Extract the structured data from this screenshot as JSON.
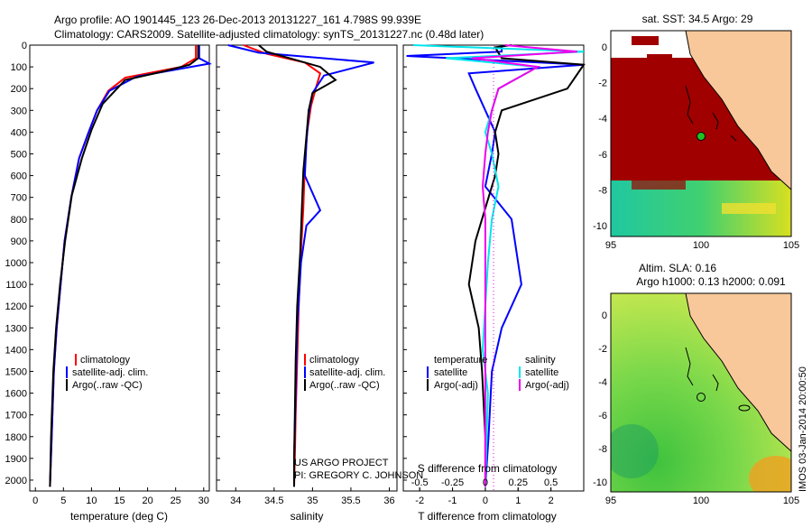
{
  "header": {
    "line1": "Argo profile: AO 1901445_123 26-Dec-2013 20131227_161 4.798S 99.939E",
    "line2": "Climatology: CARS2009. Satellite-adjusted climatology: synTS_20131227.nc (0.48d later)"
  },
  "depth_ticks": [
    "0",
    "100",
    "200",
    "300",
    "400",
    "500",
    "600",
    "700",
    "800",
    "900",
    "1000",
    "1100",
    "1200",
    "1300",
    "1400",
    "1500",
    "1600",
    "1700",
    "1800",
    "1900",
    "2000"
  ],
  "temp_panel": {
    "xlabel": "temperature (deg C)",
    "xticks": [
      "0",
      "5",
      "10",
      "15",
      "20",
      "25",
      "30"
    ],
    "legend": [
      "climatology",
      "satellite-adj. clim.",
      "Argo(..raw -QC)"
    ]
  },
  "sal_panel": {
    "xlabel": "salinity",
    "xticks": [
      "34",
      "34.5",
      "35",
      "35.5",
      "36"
    ],
    "legend": [
      "climatology",
      "satellite-adj. clim.",
      "Argo(..raw -QC)"
    ],
    "credit_line1": "US ARGO PROJECT",
    "credit_line2": "PI: GREGORY C. JOHNSON"
  },
  "diff_panel": {
    "xlabel": "T difference from climatology",
    "xlabel_top": "S difference from climatology",
    "xticks_t": [
      "-2",
      "-1",
      "0",
      "1",
      "2"
    ],
    "xticks_s": [
      "-0.5",
      "-0.25",
      "0",
      "0.25",
      "0.5"
    ],
    "legend_temp_title": "temperature",
    "legend_sal_title": "salinity",
    "legend_temp": [
      "satellite",
      "Argo(-adj)"
    ],
    "legend_sal": [
      "satellite",
      "Argo(-adj)"
    ]
  },
  "map_sst": {
    "title": "sat. SST: 34.5 Argo: 29",
    "xticks": [
      "95",
      "100",
      "105"
    ],
    "yticks": [
      "0",
      "-2",
      "-4",
      "-6",
      "-8",
      "-10"
    ]
  },
  "map_sla": {
    "title1": "Altim. SLA: 0.16",
    "title2": "Argo h1000: 0.13 h2000: 0.091",
    "xticks": [
      "95",
      "100",
      "105"
    ],
    "yticks": [
      "0",
      "-2",
      "-4",
      "-6",
      "-8",
      "-10"
    ]
  },
  "watermark": "IMOS 03-Jan-2014 20:00:50",
  "colors": {
    "climatology": "#ff0000",
    "satellite": "#0000ff",
    "argo": "#000000",
    "satellite_sal": "#00e5ee",
    "argo_sal": "#ee00ee",
    "land": "#f8c89a",
    "sst_hot": "#a00000"
  },
  "chart_data": [
    {
      "type": "line",
      "ylabel": "",
      "xlabel": "temperature (deg C)",
      "xlim": [
        -1,
        31
      ],
      "ylim": [
        2050,
        0
      ],
      "series": [
        {
          "name": "climatology",
          "x": [
            28.6,
            28.6,
            26,
            16,
            13,
            11,
            9.5,
            7.8,
            6.4,
            5.2,
            4.5,
            3.8,
            3.3,
            2.9,
            2.6
          ],
          "y": [
            0,
            60,
            100,
            150,
            210,
            300,
            400,
            520,
            700,
            900,
            1100,
            1300,
            1500,
            1800,
            2030
          ]
        },
        {
          "name": "satellite-adj. clim.",
          "x": [
            29.2,
            29.2,
            31,
            18,
            13.2,
            11,
            9.5,
            7.8,
            6.4,
            5.2,
            4.5,
            3.8,
            3.3,
            2.9,
            2.6
          ],
          "y": [
            0,
            60,
            85,
            145,
            210,
            300,
            400,
            520,
            700,
            900,
            1100,
            1300,
            1500,
            1800,
            2030
          ]
        },
        {
          "name": "Argo(..raw -QC)",
          "x": [
            29,
            29,
            27.5,
            23,
            16,
            12,
            10,
            8.3,
            6.5,
            5.3,
            4.4,
            3.7,
            3.2,
            2.8,
            2.6
          ],
          "y": [
            0,
            60,
            90,
            120,
            160,
            270,
            390,
            520,
            690,
            900,
            1100,
            1300,
            1500,
            1800,
            2030
          ]
        }
      ]
    },
    {
      "type": "line",
      "xlabel": "salinity",
      "xlim": [
        33.75,
        36.1
      ],
      "ylim": [
        2050,
        0
      ],
      "series": [
        {
          "name": "climatology",
          "x": [
            34.1,
            34.4,
            34.9,
            35.1,
            35.05,
            34.98,
            34.93,
            34.9,
            34.88,
            34.85,
            34.82,
            34.8,
            34.78,
            34.77,
            34.76
          ],
          "y": [
            0,
            40,
            80,
            130,
            190,
            280,
            400,
            550,
            750,
            950,
            1200,
            1450,
            1700,
            1900,
            2030
          ]
        },
        {
          "name": "satellite-adj. clim.",
          "x": [
            33.9,
            34.3,
            35.8,
            35.15,
            35.0,
            34.95,
            34.92,
            34.9,
            35.1,
            34.92,
            34.85,
            34.8,
            34.78,
            34.76,
            34.76
          ],
          "y": [
            0,
            35,
            80,
            140,
            220,
            320,
            450,
            600,
            760,
            830,
            1000,
            1300,
            1600,
            1900,
            2030
          ]
        },
        {
          "name": "Argo(..raw -QC)",
          "x": [
            34.3,
            34.4,
            35.1,
            35.3,
            35.0,
            34.95,
            34.92,
            34.88,
            34.86,
            34.84,
            34.8,
            34.78,
            34.77,
            34.76,
            34.76
          ],
          "y": [
            0,
            30,
            100,
            160,
            220,
            300,
            420,
            580,
            760,
            950,
            1200,
            1450,
            1700,
            1900,
            2030
          ]
        }
      ]
    },
    {
      "type": "line",
      "xlabel": "T difference from climatology",
      "xlim": [
        -2.5,
        3
      ],
      "ylim": [
        2050,
        0
      ],
      "series": [
        {
          "name": "temperature satellite",
          "x": [
            0.5,
            0.5,
            -2.4,
            3,
            -0.5,
            -0.3,
            0,
            0.3,
            0.2,
            0,
            0.8,
            1.1,
            0.5,
            0.2,
            0.1,
            0
          ],
          "y": [
            0,
            30,
            50,
            90,
            130,
            200,
            300,
            400,
            500,
            650,
            800,
            1100,
            1300,
            1500,
            1800,
            2030
          ]
        },
        {
          "name": "temperature Argo(-adj)",
          "x": [
            0.8,
            0.3,
            0.5,
            3,
            2.5,
            0.5,
            0.3,
            0.4,
            0.3,
            0,
            -0.3,
            -0.5,
            -0.2,
            -0.1,
            0,
            0
          ],
          "y": [
            0,
            10,
            60,
            90,
            200,
            300,
            400,
            500,
            600,
            750,
            900,
            1100,
            1300,
            1500,
            1800,
            2030
          ]
        }
      ]
    },
    {
      "type": "line",
      "xlabel": "S difference from climatology",
      "xlim": [
        -0.625,
        0.75
      ],
      "ylim": [
        2050,
        0
      ],
      "series": [
        {
          "name": "salinity satellite",
          "x": [
            -0.55,
            0.75,
            -0.3,
            0.4,
            0.1,
            0.05,
            0.0,
            0.05,
            0.1,
            0.05,
            0.02,
            0.0,
            -0.02,
            0.02,
            0.01,
            0.0
          ],
          "y": [
            0,
            30,
            60,
            100,
            200,
            300,
            400,
            500,
            650,
            800,
            1000,
            1200,
            1400,
            1600,
            1800,
            2030
          ]
        },
        {
          "name": "salinity Argo(-adj)",
          "x": [
            0.15,
            0.7,
            -0.1,
            0.4,
            0.1,
            0.05,
            0.02,
            0.0,
            -0.02,
            0.0,
            0.0,
            0.0,
            0.0,
            0.0,
            0.0,
            0.0
          ],
          "y": [
            0,
            30,
            60,
            100,
            200,
            300,
            400,
            500,
            650,
            800,
            1000,
            1200,
            1400,
            1600,
            1800,
            2030
          ]
        }
      ]
    }
  ]
}
